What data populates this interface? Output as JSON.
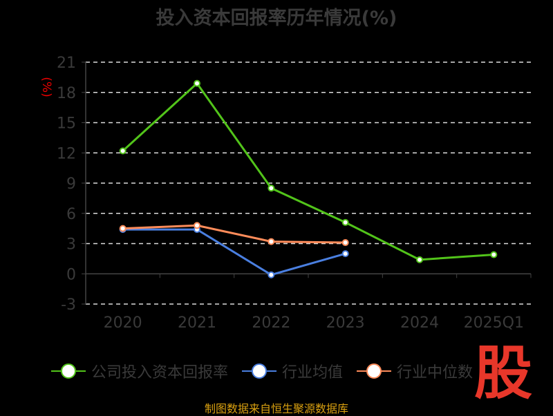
{
  "chart_data": {
    "type": "line",
    "title": "投入资本回报率历年情况(%)",
    "ylabel": "(%)",
    "categories": [
      "2020",
      "2021",
      "2022",
      "2023",
      "2024",
      "2025Q1"
    ],
    "ylim": [
      -3,
      21
    ],
    "yticks": [
      -3,
      0,
      3,
      6,
      9,
      12,
      15,
      18,
      21
    ],
    "grid": true,
    "legend_position": "bottom",
    "series": [
      {
        "name": "公司投入资本回报率",
        "color": "#52c41a",
        "values": [
          12.2,
          18.9,
          8.5,
          5.1,
          1.4,
          1.9
        ]
      },
      {
        "name": "行业均值",
        "color": "#4a7fe0",
        "values": [
          4.4,
          4.4,
          -0.1,
          2.0,
          null,
          null
        ]
      },
      {
        "name": "行业中位数",
        "color": "#ff8c5a",
        "values": [
          4.5,
          4.8,
          3.2,
          3.1,
          null,
          null
        ]
      }
    ]
  },
  "source": "制图数据来自恒生聚源数据库",
  "logo_text": "股"
}
